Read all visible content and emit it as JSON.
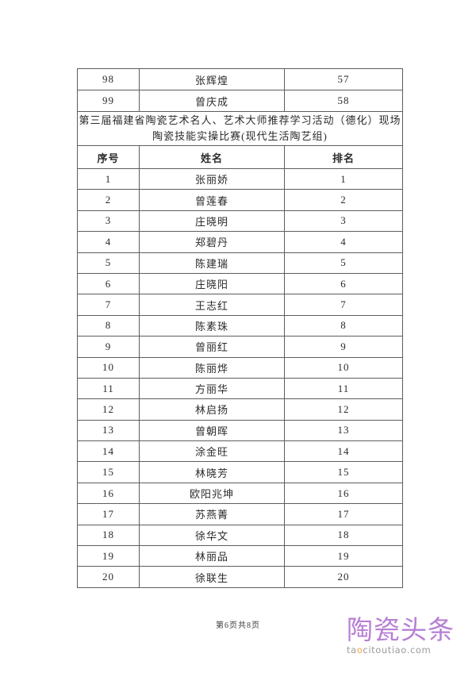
{
  "page": {
    "footer_text": "第6页共8页"
  },
  "table": {
    "continuation_rows": [
      {
        "no": "98",
        "name": "张辉煌",
        "rank": "57"
      },
      {
        "no": "99",
        "name": "曾庆成",
        "rank": "58"
      }
    ],
    "title_line1": "第三届福建省陶瓷艺术名人、艺术大师推荐学习活动（德化）现场",
    "title_line2": "陶瓷技能实操比赛(现代生活陶艺组)",
    "headers": [
      "序号",
      "姓名",
      "排名"
    ],
    "rows": [
      {
        "no": "1",
        "name": "张丽娇",
        "rank": "1"
      },
      {
        "no": "2",
        "name": "曾莲春",
        "rank": "2"
      },
      {
        "no": "3",
        "name": "庄晓明",
        "rank": "3"
      },
      {
        "no": "4",
        "name": "郑碧丹",
        "rank": "4"
      },
      {
        "no": "5",
        "name": "陈建瑞",
        "rank": "5"
      },
      {
        "no": "6",
        "name": "庄晓阳",
        "rank": "6"
      },
      {
        "no": "7",
        "name": "王志红",
        "rank": "7"
      },
      {
        "no": "8",
        "name": "陈素珠",
        "rank": "8"
      },
      {
        "no": "9",
        "name": "曾丽红",
        "rank": "9"
      },
      {
        "no": "10",
        "name": "陈丽烨",
        "rank": "10"
      },
      {
        "no": "11",
        "name": "方丽华",
        "rank": "11"
      },
      {
        "no": "12",
        "name": "林启扬",
        "rank": "12"
      },
      {
        "no": "13",
        "name": "曾朝晖",
        "rank": "13"
      },
      {
        "no": "14",
        "name": "涂金旺",
        "rank": "14"
      },
      {
        "no": "15",
        "name": "林晓芳",
        "rank": "15"
      },
      {
        "no": "16",
        "name": "欧阳兆坤",
        "rank": "16"
      },
      {
        "no": "17",
        "name": "苏燕菁",
        "rank": "17"
      },
      {
        "no": "18",
        "name": "徐华文",
        "rank": "18"
      },
      {
        "no": "19",
        "name": "林丽品",
        "rank": "19"
      },
      {
        "no": "20",
        "name": "徐联生",
        "rank": "20"
      }
    ]
  },
  "watermark": {
    "logo_text": "陶瓷头条",
    "url_prefix": "ta",
    "url_accent": "o",
    "url_suffix": "citoutiao.com",
    "logo_color": "#b77fd4",
    "url_accent_color": "#f2a33c",
    "url_color": "#9c9c9c"
  }
}
